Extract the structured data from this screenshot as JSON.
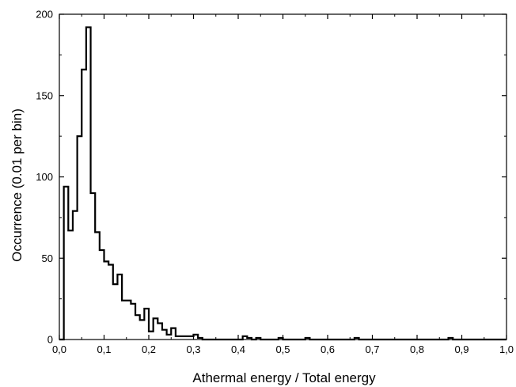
{
  "chart_data": {
    "type": "histogram",
    "xlabel": "Athermal energy / Total energy",
    "ylabel": "Occurrence (0.01 per bin)",
    "xlim": [
      0.0,
      1.0
    ],
    "ylim": [
      0,
      200
    ],
    "x_ticks": [
      "0,0",
      "0,1",
      "0,2",
      "0,3",
      "0,4",
      "0,5",
      "0,6",
      "0,7",
      "0,8",
      "0,9",
      "1,0"
    ],
    "y_ticks": [
      "0",
      "50",
      "100",
      "150",
      "200"
    ],
    "bin_width": 0.01,
    "series": [
      {
        "bin_start": 0.0,
        "values": [
          0,
          94,
          67,
          79,
          125,
          166,
          192,
          90,
          66,
          55,
          48,
          46,
          34,
          40,
          24,
          24,
          22,
          15,
          12,
          19,
          5,
          13,
          10,
          6,
          3,
          7,
          2,
          2,
          2,
          2,
          3,
          1,
          0,
          0,
          0,
          0,
          0,
          0,
          0,
          0,
          0,
          2,
          1,
          0,
          1,
          0,
          0,
          0,
          0,
          1,
          0,
          0,
          0,
          0,
          0,
          1,
          0,
          0,
          0,
          0,
          0,
          0,
          0,
          0,
          0,
          0,
          1,
          0,
          0,
          0,
          0,
          0,
          0,
          0,
          0,
          0,
          0,
          0,
          0,
          0,
          0,
          0,
          0,
          0,
          0,
          0,
          0,
          1,
          0,
          0,
          0,
          0,
          0,
          0,
          0,
          0,
          0,
          0,
          0,
          0
        ]
      }
    ],
    "grid": false,
    "legend": "none"
  }
}
